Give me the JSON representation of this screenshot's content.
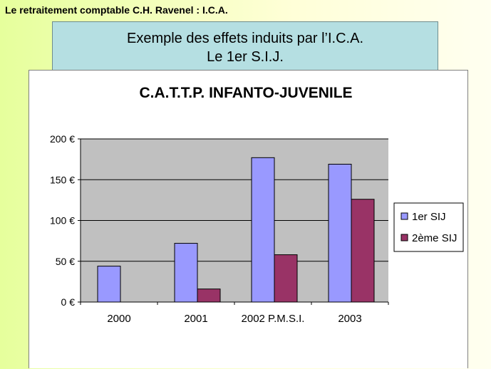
{
  "slide": {
    "top_title": "Le retraitement comptable C.H. Ravenel : I.C.A.",
    "box_line1": "Exemple des effets induits par l’I.C.A.",
    "box_line2": "Le 1er S.I.J."
  },
  "chart_data": {
    "type": "bar",
    "title": "C.A.T.T.P. INFANTO-JUVENILE",
    "categories": [
      "2000",
      "2001",
      "2002 P.M.S.I.",
      "2003"
    ],
    "series": [
      {
        "name": "1er SIJ",
        "values": [
          44,
          72,
          177,
          169
        ],
        "color": "#9999ff"
      },
      {
        "name": "2ème SIJ",
        "values": [
          null,
          16,
          58,
          126
        ],
        "color": "#993366"
      }
    ],
    "y_ticks": [
      "0 €",
      "50 €",
      "100 €",
      "150 €",
      "200 €"
    ],
    "ylim": [
      0,
      200
    ],
    "grid": true,
    "legend_position": "right",
    "plot_background": "#c0c0c0"
  }
}
